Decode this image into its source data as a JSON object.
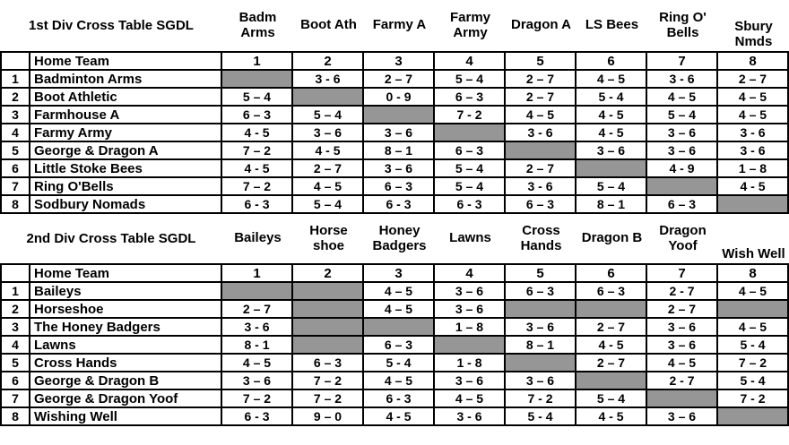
{
  "colors": {
    "background": "#ffffff",
    "text": "#000000",
    "border": "#000000",
    "blank_cell_gray": "#969696"
  },
  "tables": [
    {
      "title": "1st Div Cross Table SGDL",
      "corner_label": "Home Team",
      "column_headers": [
        "Badm\nArms",
        "Boot Ath",
        "Farmy A",
        "Farmy\nArmy",
        "Dragon A",
        "LS Bees",
        "Ring O'\nBells",
        "Sbury\nNmds"
      ],
      "header_bottom_align": [
        7
      ],
      "column_numbers": [
        "1",
        "2",
        "3",
        "4",
        "5",
        "6",
        "7",
        "8"
      ],
      "rows": [
        {
          "num": "1",
          "home_team": "Badminton Arms",
          "scores": [
            null,
            "3 - 6",
            "2 – 7",
            "5 – 4",
            "2 – 7",
            "4 – 5",
            "3 - 6",
            "2 – 7"
          ]
        },
        {
          "num": "2",
          "home_team": "Boot Athletic",
          "scores": [
            "5 – 4",
            null,
            "0 - 9",
            "6 – 3",
            "2 – 7",
            "5 - 4",
            "4 – 5",
            "4 – 5"
          ]
        },
        {
          "num": "3",
          "home_team": "Farmhouse A",
          "scores": [
            "6 – 3",
            "5 – 4",
            null,
            "7 - 2",
            "4 – 5",
            "4 - 5",
            "5 – 4",
            "4 – 5"
          ]
        },
        {
          "num": "4",
          "home_team": "Farmy Army",
          "scores": [
            "4 - 5",
            "3 – 6",
            "3 – 6",
            null,
            "3 - 6",
            "4 - 5",
            "3 – 6",
            "3 - 6"
          ]
        },
        {
          "num": "5",
          "home_team": "George & Dragon A",
          "scores": [
            "7 – 2",
            "4 - 5",
            "8 – 1",
            "6 – 3",
            null,
            "3 – 6",
            "3 – 6",
            "3 - 6"
          ]
        },
        {
          "num": "6",
          "home_team": "Little Stoke Bees",
          "scores": [
            "4 - 5",
            "2 – 7",
            "3 – 6",
            "5 – 4",
            "2 – 7",
            null,
            "4 - 9",
            "1 – 8"
          ]
        },
        {
          "num": "7",
          "home_team": "Ring O'Bells",
          "scores": [
            "7 – 2",
            "4 – 5",
            "6 – 3",
            "5 – 4",
            "3 - 6",
            "5 – 4",
            null,
            "4 - 5"
          ]
        },
        {
          "num": "8",
          "home_team": "Sodbury Nomads",
          "scores": [
            "6 - 3",
            "5 – 4",
            "6 - 3",
            "6 - 3",
            "6 – 3",
            "8 – 1",
            "6 – 3",
            null
          ]
        }
      ]
    },
    {
      "title": "2nd Div Cross Table SGDL",
      "corner_label": "Home Team",
      "column_headers": [
        "Baileys",
        "Horse\nshoe",
        "Honey\nBadgers",
        "Lawns",
        "Cross\nHands",
        "Dragon B",
        "Dragon\nYoof",
        "Wish Well"
      ],
      "header_bottom_align": [
        7
      ],
      "column_numbers": [
        "1",
        "2",
        "3",
        "4",
        "5",
        "6",
        "7",
        "8"
      ],
      "rows": [
        {
          "num": "1",
          "home_team": "Baileys",
          "scores": [
            null,
            null,
            "4 – 5",
            "3 – 6",
            "6 – 3",
            "6 – 3",
            "2 - 7",
            "4 – 5"
          ]
        },
        {
          "num": "2",
          "home_team": "Horseshoe",
          "scores": [
            "2 – 7",
            null,
            "4 – 5",
            "3 – 6",
            null,
            null,
            "2 – 7",
            null
          ]
        },
        {
          "num": "3",
          "home_team": "The Honey Badgers",
          "scores": [
            "3 - 6",
            null,
            null,
            "1 – 8",
            "3 – 6",
            "2 – 7",
            "3 – 6",
            "4 – 5"
          ]
        },
        {
          "num": "4",
          "home_team": "Lawns",
          "scores": [
            "8 - 1",
            null,
            "6 – 3",
            null,
            "8 – 1",
            "4 - 5",
            "3 – 6",
            "5 - 4"
          ]
        },
        {
          "num": "5",
          "home_team": "Cross Hands",
          "scores": [
            "4 – 5",
            "6 – 3",
            "5 - 4",
            "1 - 8",
            null,
            "2 – 7",
            "4 – 5",
            "7 – 2"
          ]
        },
        {
          "num": "6",
          "home_team": "George & Dragon B",
          "scores": [
            "3 – 6",
            "7 – 2",
            "4 – 5",
            "3 – 6",
            "3 – 6",
            null,
            "2 - 7",
            "5 - 4"
          ]
        },
        {
          "num": "7",
          "home_team": "George & Dragon Yoof",
          "scores": [
            "7 – 2",
            "7 – 2",
            "6 - 3",
            "4 – 5",
            "7 - 2",
            "5 – 4",
            null,
            "7 - 2"
          ]
        },
        {
          "num": "8",
          "home_team": "Wishing Well",
          "scores": [
            "6 - 3",
            "9 – 0",
            "4 - 5",
            "3 - 6",
            "5 - 4",
            "4 - 5",
            "3 – 6",
            null
          ]
        }
      ]
    }
  ]
}
